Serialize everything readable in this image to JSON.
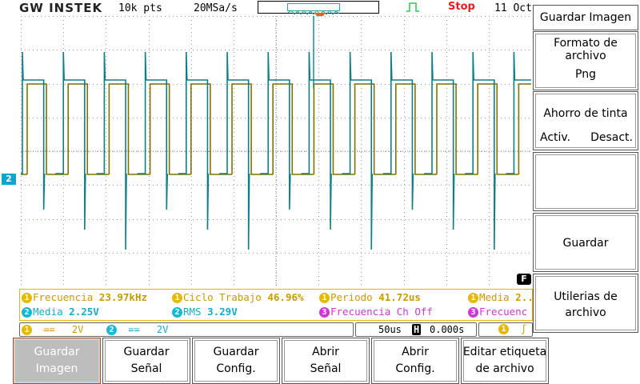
{
  "header": {
    "brand": "GW INSTEK",
    "record_length": "10k pts",
    "sample_rate": "20MSa/s",
    "run_status": "Stop",
    "date": "11 Oct"
  },
  "colors": {
    "ch1": "#7f7200",
    "ch2": "#0f7f86",
    "accent_stop": "#e02020",
    "trigger": "#f05a1a"
  },
  "markers": {
    "ch2": "2",
    "file": "F"
  },
  "measurements": {
    "row1": [
      {
        "ch": "1",
        "label": "Frecuencia",
        "value": "23.97kHz"
      },
      {
        "ch": "1",
        "label": "Ciclo Trabajo",
        "value": "46.96%"
      },
      {
        "ch": "1",
        "label": "Periodo",
        "value": "41.72us"
      },
      {
        "ch": "1",
        "label": "Media",
        "value": "2.."
      }
    ],
    "row2": [
      {
        "ch": "2",
        "label": "Media",
        "value": "2.25V"
      },
      {
        "ch": "2",
        "label": "RMS",
        "value": "3.29V"
      },
      {
        "ch": "3",
        "label": "Frecuencia Ch Off",
        "value": ""
      },
      {
        "ch": "3",
        "label": "Frecuenc",
        "value": ""
      }
    ]
  },
  "channels": {
    "ch1": {
      "num": "1",
      "coupling": "==",
      "scale": "2V"
    },
    "ch2": {
      "num": "2",
      "coupling": "==",
      "scale": "2V"
    }
  },
  "timebase": {
    "scale": "50us",
    "h_label": "H",
    "position": "0.000s"
  },
  "trigger": {
    "source": "1",
    "slope": "ʃ"
  },
  "side_menu": {
    "title": "Guardar Imagen",
    "format_label_1": "Formato de",
    "format_label_2": "archivo",
    "format_value": "Png",
    "ink_label": "Ahorro de tinta",
    "ink_on": "Activ.",
    "ink_off": "Desact.",
    "save": "Guardar",
    "utils_1": "Utilerias de",
    "utils_2": "archivo"
  },
  "bottom_menu": [
    {
      "l1": "Guardar",
      "l2": "Imagen"
    },
    {
      "l1": "Guardar",
      "l2": "Señal"
    },
    {
      "l1": "Guardar",
      "l2": "Config."
    },
    {
      "l1": "Abrir",
      "l2": "Señal"
    },
    {
      "l1": "Abrir",
      "l2": "Config."
    },
    {
      "l1": "Editar etiqueta",
      "l2": "de archivo"
    }
  ]
}
